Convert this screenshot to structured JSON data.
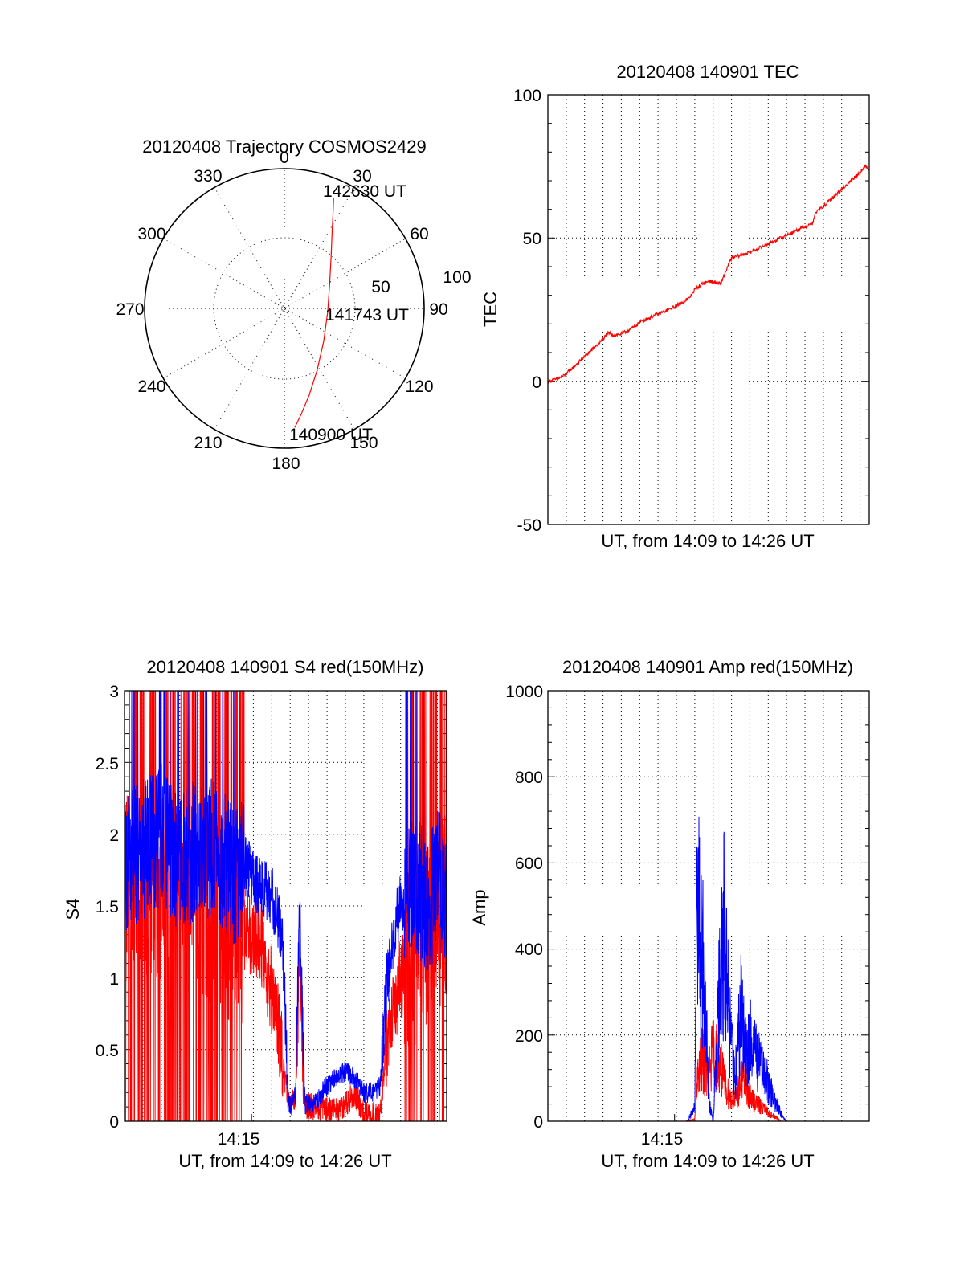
{
  "colors": {
    "red": "#ff0000",
    "blue": "#0000ff",
    "frame": "#000000"
  },
  "chart_data": [
    {
      "type": "line",
      "subtype": "polar-trajectory",
      "title": "20120408 Trajectory COSMOS2429",
      "azimuth_labels": [
        "0",
        "30",
        "60",
        "90",
        "120",
        "150",
        "180",
        "210",
        "240",
        "270",
        "300",
        "330"
      ],
      "radius_labels": [
        "50",
        "100"
      ],
      "annotations": {
        "end": "142630 UT",
        "mid": "141743 UT",
        "start": "140900 UT"
      },
      "series": [
        {
          "color": "red",
          "points": [
            {
              "azimuth": 175,
              "elevation": 13
            },
            {
              "azimuth": 171,
              "elevation": 21
            },
            {
              "azimuth": 164,
              "elevation": 32
            },
            {
              "azimuth": 152,
              "elevation": 45
            },
            {
              "azimuth": 130,
              "elevation": 57
            },
            {
              "azimuth": 95,
              "elevation": 62
            },
            {
              "azimuth": 62,
              "elevation": 57
            },
            {
              "azimuth": 42,
              "elevation": 45
            },
            {
              "azimuth": 32,
              "elevation": 32
            },
            {
              "azimuth": 27,
              "elevation": 21
            },
            {
              "azimuth": 24,
              "elevation": 12
            }
          ]
        }
      ],
      "grid": true
    },
    {
      "type": "line",
      "title": "20120408 140901 TEC",
      "xlabel": "UT, from 14:09 to 14:26 UT",
      "ylabel": "TEC",
      "ylim": [
        -50,
        100
      ],
      "yticks": [
        "100",
        "50",
        "0",
        "-50"
      ],
      "xlim_minutes": [
        0,
        17.5
      ],
      "grid": true,
      "series": [
        {
          "color": "red",
          "x_minutes": [
            0.0,
            0.4,
            0.9,
            1.4,
            1.9,
            2.4,
            2.9,
            3.3,
            3.6,
            4.0,
            4.3,
            4.7,
            5.1,
            5.5,
            6.0,
            6.6,
            7.2,
            7.7,
            8.0,
            8.4,
            8.8,
            9.4,
            10.0,
            11.0,
            12.0,
            13.0,
            14.0,
            14.4,
            14.6,
            15.0,
            15.5,
            16.0,
            16.5,
            17.0,
            17.3,
            17.5
          ],
          "values": [
            0,
            0.5,
            2,
            5,
            8,
            11,
            14,
            17,
            16,
            16.5,
            17.5,
            19,
            21,
            22,
            23.5,
            25,
            27,
            29,
            32,
            34,
            35,
            34,
            43,
            45,
            48,
            51,
            54,
            55,
            59,
            61,
            64,
            67,
            70,
            73,
            75,
            74
          ]
        }
      ]
    },
    {
      "type": "line",
      "title": "20120408 140901 S4 red(150MHz)",
      "xlabel": "UT, from 14:09 to 14:26 UT",
      "ylabel": "S4",
      "ylim": [
        0,
        3
      ],
      "yticks": [
        "3",
        "2.5",
        "2",
        "1.5",
        "1",
        "0.5",
        "0"
      ],
      "xtick_labels": [
        "14:15"
      ],
      "xtick_minutes": [
        6.9
      ],
      "xlim_minutes": [
        0,
        17.5
      ],
      "grid": true,
      "series": [
        {
          "color": "red",
          "x_minutes": [
            0,
            1,
            2,
            3,
            4,
            5,
            6,
            6.5,
            7,
            7.4,
            7.8,
            8.2,
            8.6,
            8.9,
            9.1,
            9.3,
            9.5,
            9.8,
            10,
            10.5,
            11,
            11.5,
            12,
            12.5,
            13,
            13.5,
            13.9,
            14.2,
            14.6,
            15,
            15.5,
            16,
            16.5,
            17,
            17.5
          ],
          "values": [
            1.6,
            1.7,
            1.6,
            1.8,
            1.5,
            1.4,
            1.3,
            1.35,
            1.3,
            1.25,
            1.0,
            0.8,
            0.4,
            0.12,
            0.12,
            0.2,
            1.2,
            0.1,
            0.1,
            0.1,
            0.08,
            0.07,
            0.12,
            0.2,
            0.06,
            0.04,
            0.04,
            0.5,
            0.8,
            1.0,
            1.1,
            1.2,
            1.3,
            1.4,
            1.5
          ]
        },
        {
          "color": "blue",
          "x_minutes": [
            0,
            1,
            2,
            3,
            4,
            5,
            6,
            6.5,
            7,
            7.4,
            7.8,
            8.2,
            8.6,
            8.9,
            9.1,
            9.3,
            9.5,
            9.8,
            10,
            10.5,
            11,
            11.5,
            12,
            12.5,
            13,
            13.5,
            13.9,
            14.2,
            14.6,
            15,
            15.5,
            16,
            16.5,
            17,
            17.5
          ],
          "values": [
            1.8,
            1.9,
            2.0,
            1.8,
            1.9,
            1.9,
            1.7,
            1.8,
            1.7,
            1.6,
            1.6,
            1.5,
            1.2,
            0.12,
            0.12,
            0.2,
            1.5,
            0.12,
            0.12,
            0.15,
            0.25,
            0.3,
            0.35,
            0.3,
            0.2,
            0.2,
            0.25,
            0.9,
            1.3,
            1.5,
            1.6,
            1.6,
            1.5,
            1.7,
            1.6
          ]
        }
      ]
    },
    {
      "type": "line",
      "title": "20120408 140901 Amp red(150MHz)",
      "xlabel": "UT, from 14:09 to 14:26 UT",
      "ylabel": "Amp",
      "ylim": [
        0,
        1000
      ],
      "yticks": [
        "1000",
        "800",
        "600",
        "400",
        "200",
        "0"
      ],
      "xtick_labels": [
        "14:15"
      ],
      "xtick_minutes": [
        6.9
      ],
      "xlim_minutes": [
        0,
        17.5
      ],
      "grid": true,
      "series": [
        {
          "color": "red",
          "x_minutes": [
            0,
            7.5,
            8.0,
            8.2,
            8.4,
            8.7,
            9.0,
            9.3,
            9.6,
            9.9,
            10.2,
            10.6,
            11.0,
            11.4,
            11.8,
            12.1,
            12.4,
            12.7,
            13.0,
            17.5
          ],
          "values": [
            0,
            0,
            5,
            150,
            180,
            130,
            200,
            180,
            110,
            70,
            60,
            130,
            70,
            50,
            35,
            20,
            12,
            0,
            0,
            0
          ]
        },
        {
          "color": "blue",
          "x_minutes": [
            0,
            7.6,
            8.0,
            8.15,
            8.3,
            8.5,
            8.8,
            9.0,
            9.3,
            9.6,
            9.9,
            10.2,
            10.5,
            10.8,
            11.1,
            11.4,
            11.7,
            12.0,
            12.3,
            12.6,
            12.8,
            13.0,
            17.5
          ],
          "values": [
            0,
            0,
            40,
            700,
            520,
            420,
            50,
            0,
            340,
            560,
            260,
            120,
            320,
            180,
            250,
            180,
            140,
            110,
            60,
            35,
            10,
            0,
            0
          ]
        }
      ]
    }
  ]
}
